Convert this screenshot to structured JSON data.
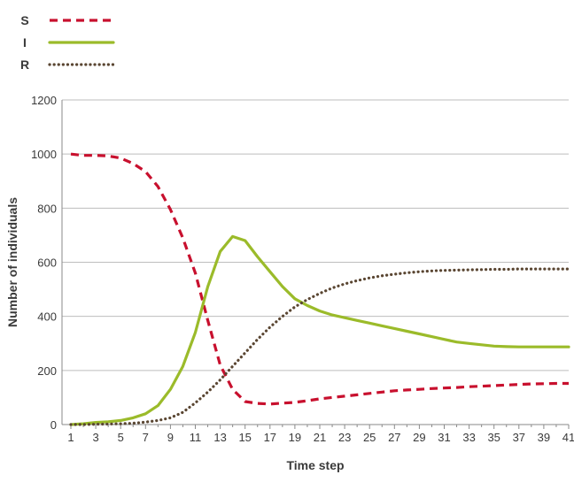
{
  "chart_data": {
    "type": "line",
    "xlabel": "Time step",
    "ylabel": "Number of individuals",
    "ylim": [
      0,
      1200
    ],
    "yticks": [
      0,
      200,
      400,
      600,
      800,
      1000,
      1200
    ],
    "xlim": [
      1,
      41
    ],
    "xticks": [
      1,
      3,
      5,
      7,
      9,
      11,
      13,
      15,
      17,
      19,
      21,
      23,
      25,
      27,
      29,
      31,
      33,
      35,
      37,
      39,
      41
    ],
    "grid": "horizontal",
    "legend_position": "top-left",
    "x": [
      1,
      2,
      3,
      4,
      5,
      6,
      7,
      8,
      9,
      10,
      11,
      12,
      13,
      14,
      15,
      16,
      17,
      18,
      19,
      20,
      21,
      22,
      23,
      24,
      25,
      26,
      27,
      28,
      29,
      30,
      31,
      32,
      33,
      34,
      35,
      36,
      37,
      38,
      39,
      40,
      41
    ],
    "series": [
      {
        "name": "S",
        "color": "#c8102e",
        "style": "dashed",
        "values": [
          1000,
          995,
          995,
          993,
          985,
          965,
          935,
          880,
          795,
          690,
          560,
          385,
          220,
          130,
          85,
          78,
          76,
          79,
          82,
          88,
          95,
          100,
          105,
          110,
          115,
          120,
          125,
          128,
          130,
          133,
          135,
          137,
          140,
          142,
          144,
          146,
          148,
          150,
          151,
          152,
          152
        ]
      },
      {
        "name": "I",
        "color": "#9bbb2a",
        "style": "solid",
        "values": [
          0,
          3,
          8,
          10,
          15,
          25,
          40,
          70,
          130,
          215,
          340,
          510,
          640,
          695,
          680,
          620,
          565,
          510,
          465,
          440,
          420,
          405,
          395,
          385,
          375,
          365,
          355,
          345,
          335,
          325,
          315,
          305,
          300,
          295,
          290,
          288,
          287,
          287,
          287,
          287,
          287
        ]
      },
      {
        "name": "R",
        "color": "#5a4632",
        "style": "dotted",
        "values": [
          0,
          0,
          1,
          2,
          3,
          5,
          9,
          15,
          25,
          45,
          80,
          120,
          165,
          215,
          265,
          315,
          360,
          400,
          435,
          462,
          485,
          505,
          520,
          532,
          542,
          550,
          556,
          561,
          565,
          568,
          570,
          571,
          572,
          573,
          574,
          574,
          575,
          575,
          575,
          575,
          575
        ]
      }
    ]
  }
}
